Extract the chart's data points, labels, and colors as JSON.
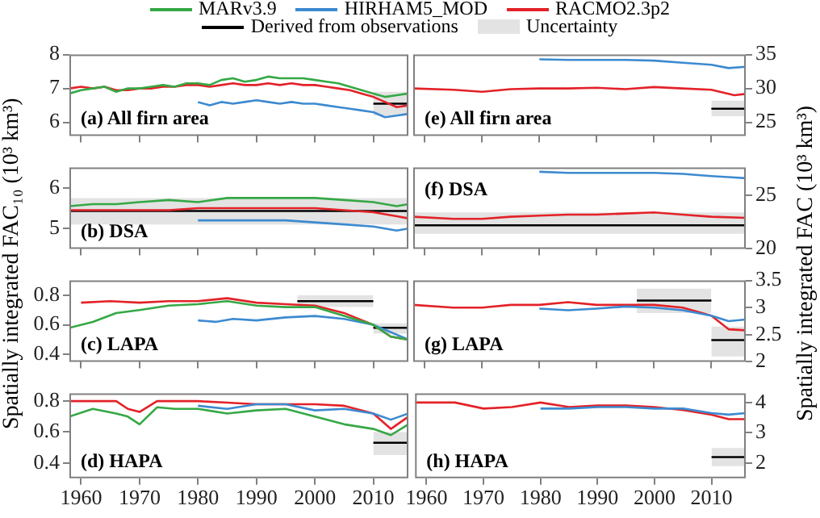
{
  "chart_data": [
    {
      "type": "line",
      "ylabel": "Spatially integrated FAC₁₀ (10³ km³)",
      "legend": "top",
      "annotations": [
        "(a) All firn area",
        "Uncertainty"
      ],
      "xlim": [
        1958,
        2016
      ],
      "xticks": [
        1960,
        1970,
        1980,
        1990,
        2000,
        2010
      ],
      "ylim": [
        5.6,
        8
      ],
      "yticks": [
        6,
        7,
        8
      ],
      "tick_labels": "y",
      "series": [
        {
          "name": "MARv3.9",
          "color": "#35a845",
          "x": [
            1958,
            1960,
            1962,
            1964,
            1966,
            1968,
            1970,
            1972,
            1974,
            1976,
            1978,
            1980,
            1982,
            1984,
            1986,
            1988,
            1990,
            1992,
            1994,
            1996,
            1998,
            2000,
            2002,
            2004,
            2006,
            2008,
            2010,
            2012,
            2014,
            2016
          ],
          "values": [
            6.85,
            6.95,
            7.0,
            7.05,
            6.9,
            7.0,
            7.0,
            7.05,
            7.1,
            7.05,
            7.15,
            7.15,
            7.1,
            7.25,
            7.3,
            7.2,
            7.25,
            7.35,
            7.3,
            7.3,
            7.3,
            7.25,
            7.2,
            7.15,
            7.05,
            6.95,
            6.85,
            6.75,
            6.8,
            6.85
          ]
        },
        {
          "name": "HIRHAM5_MOD",
          "color": "#3c8ad0",
          "x": [
            1980,
            1982,
            1984,
            1986,
            1988,
            1990,
            1992,
            1994,
            1996,
            1998,
            2000,
            2002,
            2004,
            2006,
            2008,
            2010,
            2012,
            2014,
            2016
          ],
          "values": [
            6.6,
            6.5,
            6.6,
            6.55,
            6.6,
            6.65,
            6.6,
            6.55,
            6.6,
            6.55,
            6.55,
            6.5,
            6.45,
            6.4,
            6.35,
            6.3,
            6.15,
            6.2,
            6.25
          ]
        },
        {
          "name": "RACMO2.3p2",
          "color": "#e32228",
          "x": [
            1958,
            1960,
            1962,
            1964,
            1966,
            1968,
            1970,
            1972,
            1974,
            1976,
            1978,
            1980,
            1982,
            1984,
            1986,
            1988,
            1990,
            1992,
            1994,
            1996,
            1998,
            2000,
            2002,
            2004,
            2006,
            2008,
            2010,
            2012,
            2014,
            2016
          ],
          "values": [
            7.0,
            7.05,
            7.0,
            7.05,
            6.95,
            6.95,
            7.0,
            7.0,
            7.05,
            7.05,
            7.1,
            7.1,
            7.05,
            7.1,
            7.15,
            7.1,
            7.1,
            7.15,
            7.1,
            7.15,
            7.1,
            7.1,
            7.05,
            7.0,
            6.95,
            6.85,
            6.75,
            6.6,
            6.45,
            6.5
          ]
        },
        {
          "name": "Derived from observations",
          "color": "#000000",
          "x": [
            2010,
            2016
          ],
          "values": [
            6.55,
            6.55
          ],
          "lower": [
            6.2,
            6.2
          ],
          "upper": [
            6.9,
            6.9
          ]
        }
      ]
    },
    {
      "type": "line",
      "annotations": [
        "(b) DSA"
      ],
      "xlim": [
        1958,
        2016
      ],
      "xticks": [
        1960,
        1970,
        1980,
        1990,
        2000,
        2010
      ],
      "ylim": [
        4.5,
        6.5
      ],
      "yticks": [
        5,
        6
      ],
      "tick_labels": "y",
      "series": [
        {
          "color": "#35a845",
          "x": [
            1958,
            1962,
            1966,
            1970,
            1975,
            1980,
            1985,
            1990,
            1995,
            2000,
            2005,
            2010,
            2014,
            2016
          ],
          "values": [
            5.55,
            5.6,
            5.6,
            5.65,
            5.7,
            5.65,
            5.75,
            5.75,
            5.75,
            5.75,
            5.7,
            5.65,
            5.55,
            5.6
          ]
        },
        {
          "color": "#3c8ad0",
          "x": [
            1980,
            1985,
            1990,
            1995,
            2000,
            2005,
            2010,
            2014,
            2016
          ],
          "values": [
            5.2,
            5.2,
            5.2,
            5.2,
            5.15,
            5.1,
            5.05,
            4.95,
            5.0
          ]
        },
        {
          "color": "#e32228",
          "x": [
            1958,
            1965,
            1970,
            1975,
            1980,
            1985,
            1990,
            1995,
            2000,
            2005,
            2010,
            2014,
            2016
          ],
          "values": [
            5.45,
            5.45,
            5.45,
            5.45,
            5.5,
            5.5,
            5.5,
            5.5,
            5.5,
            5.45,
            5.4,
            5.3,
            5.25
          ]
        },
        {
          "color": "#000000",
          "x": [
            1958,
            2016
          ],
          "values": [
            5.43,
            5.43
          ],
          "lower": [
            5.1,
            5.1
          ],
          "upper": [
            5.75,
            5.75
          ]
        }
      ]
    },
    {
      "type": "line",
      "annotations": [
        "(c) LAPA"
      ],
      "xlim": [
        1958,
        2016
      ],
      "xticks": [
        1960,
        1970,
        1980,
        1990,
        2000,
        2010
      ],
      "ylim": [
        0.35,
        0.9
      ],
      "yticks": [
        0.4,
        0.6,
        0.8
      ],
      "tick_labels": "y",
      "series": [
        {
          "color": "#35a845",
          "x": [
            1958,
            1962,
            1966,
            1970,
            1975,
            1980,
            1985,
            1990,
            1995,
            2000,
            2005,
            2010,
            2013,
            2016
          ],
          "values": [
            0.58,
            0.62,
            0.68,
            0.7,
            0.73,
            0.74,
            0.76,
            0.73,
            0.72,
            0.72,
            0.66,
            0.6,
            0.52,
            0.5
          ]
        },
        {
          "color": "#3c8ad0",
          "x": [
            1980,
            1983,
            1986,
            1990,
            1995,
            2000,
            2005,
            2010,
            2013,
            2016
          ],
          "values": [
            0.63,
            0.62,
            0.64,
            0.63,
            0.65,
            0.66,
            0.64,
            0.6,
            0.55,
            0.5
          ]
        },
        {
          "color": "#e32228",
          "x": [
            1960,
            1965,
            1970,
            1975,
            1980,
            1985,
            1990,
            1995,
            2000,
            2005,
            2010,
            2013,
            2016
          ],
          "values": [
            0.75,
            0.76,
            0.75,
            0.76,
            0.76,
            0.78,
            0.75,
            0.74,
            0.73,
            0.68,
            0.6,
            0.52,
            0.5
          ]
        },
        {
          "color": "#000000",
          "x": [
            1997,
            2010
          ],
          "values": [
            0.76,
            0.76
          ],
          "lower": [
            0.72,
            0.72
          ],
          "upper": [
            0.8,
            0.8
          ]
        },
        {
          "color": "#000000",
          "x": [
            2010,
            2016
          ],
          "values": [
            0.58,
            0.58
          ],
          "lower": [
            0.54,
            0.54
          ],
          "upper": [
            0.61,
            0.61
          ]
        }
      ]
    },
    {
      "type": "line",
      "annotations": [
        "(d) HAPA"
      ],
      "xlim": [
        1958,
        2016
      ],
      "xticks": [
        1960,
        1970,
        1980,
        1990,
        2000,
        2010
      ],
      "ylim": [
        0.3,
        0.85
      ],
      "yticks": [
        0.4,
        0.6,
        0.8
      ],
      "series": [
        {
          "color": "#35a845",
          "x": [
            1958,
            1962,
            1966,
            1968,
            1970,
            1973,
            1976,
            1980,
            1985,
            1990,
            1995,
            2000,
            2005,
            2010,
            2013,
            2016
          ],
          "values": [
            0.7,
            0.75,
            0.72,
            0.7,
            0.65,
            0.76,
            0.75,
            0.75,
            0.72,
            0.74,
            0.75,
            0.7,
            0.65,
            0.62,
            0.58,
            0.65
          ]
        },
        {
          "color": "#3c8ad0",
          "x": [
            1980,
            1985,
            1990,
            1995,
            2000,
            2005,
            2010,
            2013,
            2016
          ],
          "values": [
            0.77,
            0.75,
            0.78,
            0.78,
            0.74,
            0.75,
            0.72,
            0.68,
            0.72
          ]
        },
        {
          "color": "#e32228",
          "x": [
            1958,
            1962,
            1966,
            1968,
            1970,
            1973,
            1976,
            1980,
            1985,
            1990,
            1995,
            2000,
            2005,
            2010,
            2013,
            2016
          ],
          "values": [
            0.8,
            0.8,
            0.8,
            0.75,
            0.73,
            0.8,
            0.8,
            0.8,
            0.79,
            0.78,
            0.78,
            0.78,
            0.77,
            0.72,
            0.62,
            0.7
          ]
        },
        {
          "color": "#000000",
          "x": [
            2010,
            2016
          ],
          "values": [
            0.53,
            0.53
          ],
          "lower": [
            0.45,
            0.45
          ],
          "upper": [
            0.6,
            0.6
          ]
        }
      ]
    },
    {
      "type": "line",
      "ylabel": "Spatially integrated FAC (10³ km³)",
      "annotations": [
        "(e) All firn area"
      ],
      "xlim": [
        1958,
        2016
      ],
      "xticks": [
        1960,
        1970,
        1980,
        1990,
        2000,
        2010
      ],
      "ylim": [
        23,
        35
      ],
      "yticks": [
        25,
        30,
        35
      ],
      "tick_labels": "y",
      "series": [
        {
          "color": "#3c8ad0",
          "x": [
            1980,
            1985,
            1990,
            1995,
            2000,
            2005,
            2010,
            2013,
            2016
          ],
          "values": [
            34.3,
            34.2,
            34.2,
            34.2,
            34.1,
            33.8,
            33.5,
            33.0,
            33.2
          ]
        },
        {
          "color": "#e32228",
          "x": [
            1958,
            1965,
            1970,
            1975,
            1980,
            1985,
            1990,
            1995,
            2000,
            2005,
            2010,
            2014,
            2016
          ],
          "values": [
            30.0,
            29.8,
            29.5,
            29.9,
            30.0,
            30.0,
            30.1,
            29.9,
            30.2,
            30.0,
            29.8,
            29.0,
            29.2
          ]
        },
        {
          "color": "#000000",
          "x": [
            2010,
            2016
          ],
          "values": [
            27,
            27
          ],
          "lower": [
            25.9,
            25.9
          ],
          "upper": [
            28.2,
            28.2
          ]
        }
      ]
    },
    {
      "type": "line",
      "annotations": [
        "(f) DSA"
      ],
      "xlim": [
        1958,
        2016
      ],
      "xticks": [
        1960,
        1970,
        1980,
        1990,
        2000,
        2010
      ],
      "ylim": [
        20,
        27.6
      ],
      "yticks": [
        20,
        25
      ],
      "tick_labels": "y",
      "series": [
        {
          "color": "#3c8ad0",
          "x": [
            1980,
            1985,
            1990,
            1995,
            2000,
            2005,
            2010,
            2013,
            2016
          ],
          "values": [
            27.2,
            27.1,
            27.1,
            27.1,
            27.1,
            27.0,
            26.8,
            26.7,
            26.6
          ]
        },
        {
          "color": "#e32228",
          "x": [
            1958,
            1965,
            1970,
            1975,
            1980,
            1985,
            1990,
            1995,
            2000,
            2005,
            2010,
            2016
          ],
          "values": [
            23.0,
            22.8,
            22.8,
            23.0,
            23.1,
            23.2,
            23.2,
            23.3,
            23.4,
            23.2,
            23.0,
            22.9
          ]
        },
        {
          "color": "#000000",
          "x": [
            1958,
            2016
          ],
          "values": [
            22.2,
            22.2
          ],
          "lower": [
            21.4,
            21.4
          ],
          "upper": [
            23.4,
            23.4
          ]
        }
      ]
    },
    {
      "type": "line",
      "annotations": [
        "(g) LAPA"
      ],
      "xlim": [
        1958,
        2016
      ],
      "xticks": [
        1960,
        1970,
        1980,
        1990,
        2000,
        2010
      ],
      "ylim": [
        2,
        3.5
      ],
      "yticks": [
        2,
        2.5,
        3,
        3.5
      ],
      "tick_labels": "y",
      "series": [
        {
          "color": "#3c8ad0",
          "x": [
            1980,
            1985,
            1990,
            1995,
            2000,
            2005,
            2010,
            2013,
            2016
          ],
          "values": [
            2.98,
            2.95,
            2.98,
            3.02,
            3.0,
            2.95,
            2.85,
            2.75,
            2.78
          ]
        },
        {
          "color": "#e32228",
          "x": [
            1958,
            1965,
            1970,
            1975,
            1980,
            1985,
            1990,
            1995,
            2000,
            2005,
            2010,
            2013,
            2016
          ],
          "values": [
            3.05,
            3.0,
            3.0,
            3.05,
            3.05,
            3.1,
            3.05,
            3.05,
            3.05,
            3.0,
            2.85,
            2.6,
            2.58
          ]
        },
        {
          "color": "#000000",
          "x": [
            1997,
            2010
          ],
          "values": [
            3.13,
            3.13
          ],
          "lower": [
            2.9,
            2.9
          ],
          "upper": [
            3.35,
            3.35
          ]
        },
        {
          "color": "#000000",
          "x": [
            2010,
            2016
          ],
          "values": [
            2.4,
            2.4
          ],
          "lower": [
            2.1,
            2.1
          ],
          "upper": [
            2.65,
            2.65
          ]
        }
      ]
    },
    {
      "type": "line",
      "annotations": [
        "(h) HAPA"
      ],
      "xlim": [
        1958,
        2016
      ],
      "xticks": [
        1960,
        1970,
        1980,
        1990,
        2000,
        2010
      ],
      "ylim": [
        1.5,
        4.3
      ],
      "yticks": [
        2,
        3,
        4
      ],
      "series": [
        {
          "color": "#3c8ad0",
          "x": [
            1980,
            1985,
            1990,
            1995,
            2000,
            2005,
            2010,
            2013,
            2016
          ],
          "values": [
            3.8,
            3.8,
            3.85,
            3.85,
            3.8,
            3.8,
            3.65,
            3.6,
            3.65
          ]
        },
        {
          "color": "#e32228",
          "x": [
            1958,
            1965,
            1970,
            1975,
            1980,
            1985,
            1990,
            1995,
            2000,
            2005,
            2010,
            2013,
            2016
          ],
          "values": [
            4.0,
            4.0,
            3.8,
            3.85,
            4.0,
            3.85,
            3.9,
            3.9,
            3.85,
            3.75,
            3.6,
            3.45,
            3.45
          ]
        },
        {
          "color": "#000000",
          "x": [
            2010,
            2016
          ],
          "values": [
            2.2,
            2.2
          ],
          "lower": [
            1.9,
            1.9
          ],
          "upper": [
            2.5,
            2.5
          ]
        }
      ]
    }
  ]
}
